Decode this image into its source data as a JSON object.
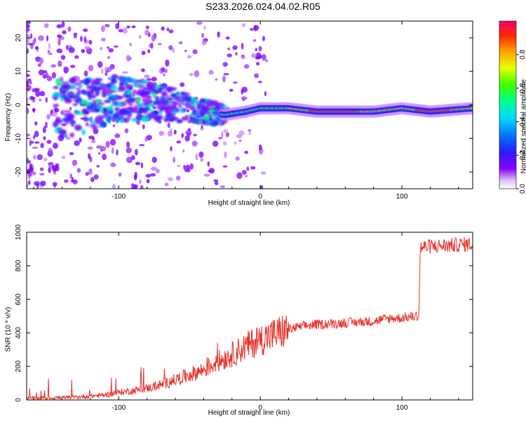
{
  "title": "S233.2026.024.04.02.R05",
  "chart_data": [
    {
      "type": "heatmap",
      "name": "spectrogram",
      "xlabel": "Height of straight line (km)",
      "ylabel": "Frequency (Hz)",
      "xlim": [
        -165,
        150
      ],
      "ylim": [
        -25,
        25
      ],
      "xticks": [
        -100,
        0,
        100
      ],
      "xtick_labels": [
        "-100",
        "0",
        "100"
      ],
      "yticks": [
        -20,
        -10,
        0,
        10,
        20
      ],
      "ytick_labels": [
        "-20",
        "-10",
        "0",
        "10",
        "20"
      ],
      "ridge": {
        "x": [
          -165,
          -140,
          -120,
          -100,
          -80,
          -60,
          -40,
          -25,
          -10,
          0,
          20,
          40,
          60,
          80,
          100,
          120,
          150
        ],
        "frequency": [
          0,
          -1,
          0,
          2,
          1,
          0,
          -2,
          -3,
          -2,
          -1,
          -1,
          -2,
          -2,
          -2,
          -1,
          -2,
          -1
        ]
      },
      "colorbar": {
        "label": "Normalized spectral amplitude",
        "range": [
          0,
          1
        ],
        "ticks": [
          0.0,
          0.2,
          0.4,
          0.6,
          0.8
        ],
        "tick_labels": [
          "0.0",
          "0.2",
          "0.4",
          "0.6",
          "0.8"
        ],
        "colors": [
          "#ffffff",
          "#8b00ff",
          "#3b1bff",
          "#0044ff",
          "#00c8ff",
          "#00ff88",
          "#4cff00",
          "#e6ff00",
          "#ffa500",
          "#ff2200",
          "#ff0060"
        ]
      }
    },
    {
      "type": "line",
      "name": "snr",
      "xlabel": "Height of straight line (km)",
      "ylabel": "SNR (10 * v/v)",
      "xlim": [
        -165,
        150
      ],
      "ylim": [
        0,
        1000
      ],
      "xticks": [
        -100,
        0,
        100
      ],
      "xtick_labels": [
        "-100",
        "0",
        "100"
      ],
      "yticks": [
        0,
        200,
        400,
        600,
        800,
        1000
      ],
      "ytick_labels": [
        "0",
        "200",
        "400",
        "600",
        "800",
        "1000"
      ],
      "color": "#e8302a",
      "series": [
        {
          "name": "SNR",
          "x": [
            -165,
            -150,
            -135,
            -120,
            -110,
            -100,
            -90,
            -80,
            -70,
            -60,
            -50,
            -40,
            -30,
            -20,
            -10,
            0,
            10,
            20,
            30,
            40,
            50,
            60,
            70,
            80,
            90,
            100,
            110,
            112,
            113,
            120,
            130,
            140,
            150
          ],
          "y": [
            10,
            12,
            15,
            22,
            30,
            45,
            55,
            70,
            90,
            120,
            150,
            180,
            230,
            270,
            320,
            360,
            390,
            420,
            440,
            450,
            455,
            460,
            465,
            470,
            485,
            490,
            500,
            500,
            910,
            915,
            920,
            925,
            930
          ]
        }
      ]
    }
  ]
}
